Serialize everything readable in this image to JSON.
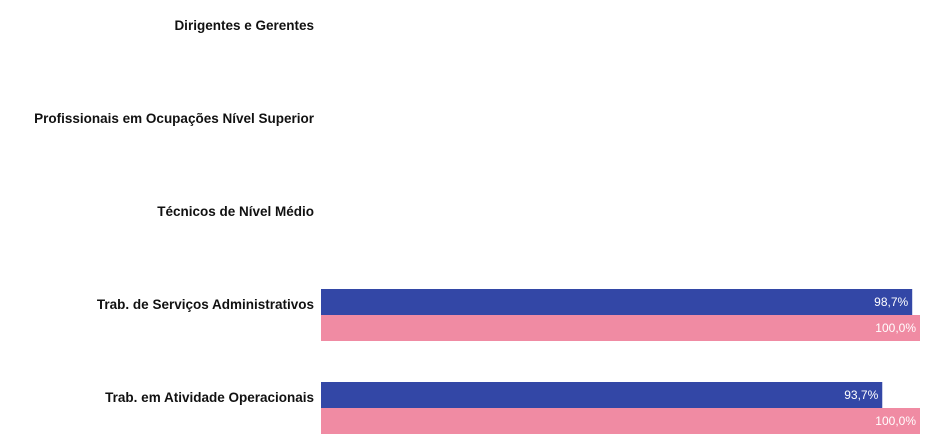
{
  "chart_data": {
    "type": "bar",
    "orientation": "horizontal",
    "categories": [
      "Dirigentes e Gerentes",
      "Profissionais em Ocupações Nível Superior",
      "Técnicos de Nível Médio",
      "Trab. de Serviços Administrativos",
      "Trab. em Atividade Operacionais"
    ],
    "series": [
      {
        "color": "#3347a6",
        "values": [
          null,
          null,
          null,
          98.7,
          93.7
        ]
      },
      {
        "color": "#f08ba3",
        "values": [
          null,
          null,
          null,
          100.0,
          100.0
        ]
      }
    ],
    "data_labels": [
      [
        null,
        null,
        null,
        "98,7%",
        "93,7%"
      ],
      [
        null,
        null,
        null,
        "100,0%",
        "100,0%"
      ]
    ],
    "xlim": [
      0,
      100
    ],
    "grid": false,
    "legend": "none"
  }
}
